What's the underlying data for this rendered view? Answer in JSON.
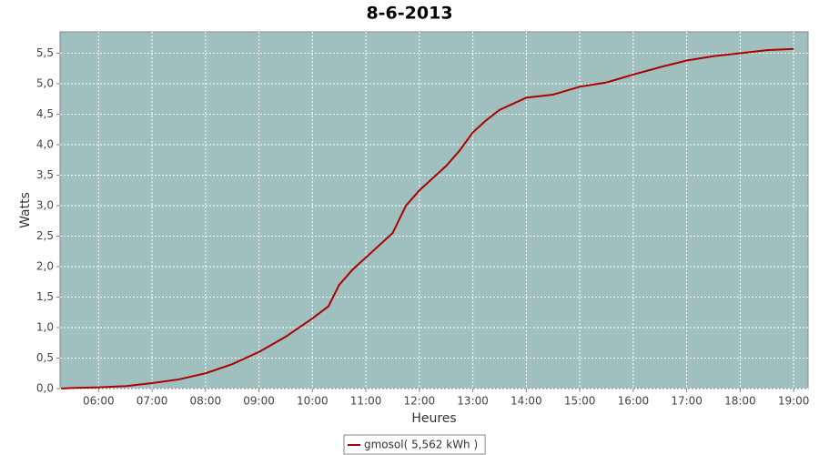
{
  "chart_data": {
    "type": "line",
    "title": "8-6-2013",
    "x_label": "Heures",
    "y_label": "Watts",
    "x": [
      5.3,
      5.5,
      6.0,
      6.5,
      7.0,
      7.5,
      8.0,
      8.5,
      9.0,
      9.5,
      10.0,
      10.3,
      10.5,
      10.75,
      11.0,
      11.5,
      11.75,
      12.0,
      12.25,
      12.5,
      12.75,
      13.0,
      13.25,
      13.5,
      13.75,
      14.0,
      14.5,
      15.0,
      15.5,
      16.0,
      16.5,
      17.0,
      17.5,
      18.0,
      18.5,
      19.0
    ],
    "series": [
      {
        "name": "gmosol( 5,562 kWh )",
        "color": "#aa0000",
        "values": [
          0,
          0.01,
          0.02,
          0.04,
          0.09,
          0.15,
          0.25,
          0.4,
          0.6,
          0.85,
          1.15,
          1.35,
          1.7,
          1.95,
          2.15,
          2.55,
          3.0,
          3.25,
          3.45,
          3.65,
          3.9,
          4.2,
          4.4,
          4.57,
          4.67,
          4.77,
          4.82,
          4.95,
          5.02,
          5.15,
          5.27,
          5.38,
          5.45,
          5.5,
          5.55,
          5.57
        ]
      }
    ],
    "xlim": [
      5.28,
      19.27
    ],
    "ylim": [
      0,
      5.85
    ],
    "xticks": [
      {
        "value": 6,
        "label": "06:00"
      },
      {
        "value": 7,
        "label": "07:00"
      },
      {
        "value": 8,
        "label": "08:00"
      },
      {
        "value": 9,
        "label": "09:00"
      },
      {
        "value": 10,
        "label": "10:00"
      },
      {
        "value": 11,
        "label": "11:00"
      },
      {
        "value": 12,
        "label": "12:00"
      },
      {
        "value": 13,
        "label": "13:00"
      },
      {
        "value": 14,
        "label": "14:00"
      },
      {
        "value": 15,
        "label": "15:00"
      },
      {
        "value": 16,
        "label": "16:00"
      },
      {
        "value": 17,
        "label": "17:00"
      },
      {
        "value": 18,
        "label": "18:00"
      },
      {
        "value": 19,
        "label": "19:00"
      }
    ],
    "yticks": [
      {
        "value": 0,
        "label": "0,0"
      },
      {
        "value": 0.5,
        "label": "0,5"
      },
      {
        "value": 1,
        "label": "1,0"
      },
      {
        "value": 1.5,
        "label": "1,5"
      },
      {
        "value": 2,
        "label": "2,0"
      },
      {
        "value": 2.5,
        "label": "2,5"
      },
      {
        "value": 3,
        "label": "3,0"
      },
      {
        "value": 3.5,
        "label": "3,5"
      },
      {
        "value": 4,
        "label": "4,0"
      },
      {
        "value": 4.5,
        "label": "4,5"
      },
      {
        "value": 5,
        "label": "5,0"
      },
      {
        "value": 5.5,
        "label": "5,5"
      }
    ],
    "grid": true,
    "background": "#a0c0c0",
    "legend": "bottom"
  }
}
